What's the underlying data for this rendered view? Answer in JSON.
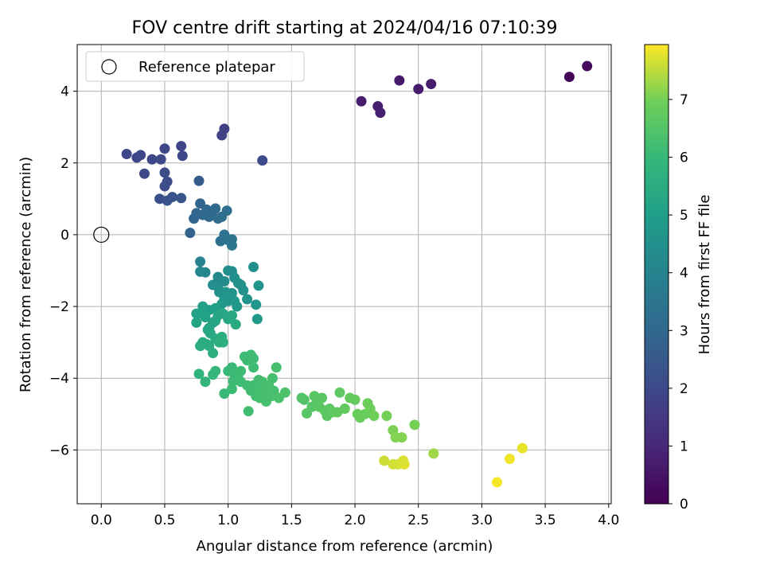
{
  "chart_data": {
    "type": "scatter",
    "title": "FOV centre drift starting at 2024/04/16 07:10:39",
    "xlabel": "Angular distance from reference (arcmin)",
    "ylabel": "Rotation from reference (arcmin)",
    "xlim": [
      -0.19,
      4.02
    ],
    "ylim": [
      -7.5,
      5.3
    ],
    "xticks": [
      0.0,
      0.5,
      1.0,
      1.5,
      2.0,
      2.5,
      3.0,
      3.5,
      4.0
    ],
    "xtick_labels": [
      "0.0",
      "0.5",
      "1.0",
      "1.5",
      "2.0",
      "2.5",
      "3.0",
      "3.5",
      "4.0"
    ],
    "yticks": [
      4,
      2,
      0,
      -2,
      -4,
      -6
    ],
    "ytick_labels": [
      "4",
      "2",
      "0",
      "−2",
      "−4",
      "−6"
    ],
    "grid": true,
    "legend": {
      "label": "Reference platepar",
      "location": "upper-left"
    },
    "reference_point": {
      "x": 0.0,
      "y": 0.0
    },
    "colorbar": {
      "label": "Hours from first FF file",
      "range": [
        0,
        7.95
      ],
      "ticks": [
        0,
        1,
        2,
        3,
        4,
        5,
        6,
        7
      ],
      "tick_labels": [
        "0",
        "1",
        "2",
        "3",
        "4",
        "5",
        "6",
        "7"
      ],
      "colormap": "viridis"
    },
    "series": [
      {
        "points": [
          [
            3.69,
            4.4,
            0.1
          ],
          [
            3.83,
            4.7,
            0.2
          ],
          [
            2.05,
            3.72,
            0.7
          ],
          [
            2.18,
            3.58,
            0.75
          ],
          [
            2.2,
            3.4,
            0.8
          ],
          [
            2.35,
            4.3,
            0.6
          ],
          [
            2.5,
            4.06,
            0.65
          ],
          [
            2.6,
            4.2,
            0.7
          ],
          [
            0.2,
            2.25,
            1.9
          ],
          [
            0.28,
            2.15,
            1.9
          ],
          [
            0.31,
            2.22,
            1.95
          ],
          [
            0.34,
            1.7,
            2.0
          ],
          [
            0.4,
            2.1,
            1.95
          ],
          [
            0.47,
            2.1,
            2.0
          ],
          [
            0.5,
            2.4,
            1.95
          ],
          [
            0.5,
            1.73,
            2.05
          ],
          [
            0.52,
            1.48,
            2.1
          ],
          [
            0.5,
            1.35,
            2.1
          ],
          [
            0.46,
            1.0,
            2.2
          ],
          [
            0.52,
            0.95,
            2.3
          ],
          [
            0.56,
            1.05,
            2.3
          ],
          [
            0.63,
            1.02,
            2.35
          ],
          [
            0.63,
            2.47,
            1.9
          ],
          [
            0.64,
            2.2,
            1.95
          ],
          [
            0.95,
            2.77,
            1.8
          ],
          [
            0.97,
            2.95,
            1.75
          ],
          [
            1.27,
            2.07,
            2.0
          ],
          [
            0.7,
            0.05,
            2.8
          ],
          [
            0.77,
            1.5,
            2.6
          ],
          [
            0.73,
            0.45,
            2.9
          ],
          [
            0.75,
            0.6,
            2.95
          ],
          [
            0.78,
            0.87,
            2.9
          ],
          [
            0.8,
            0.55,
            3.0
          ],
          [
            0.83,
            0.7,
            3.0
          ],
          [
            0.85,
            0.5,
            3.05
          ],
          [
            0.87,
            0.6,
            3.05
          ],
          [
            0.9,
            0.73,
            3.1
          ],
          [
            0.92,
            0.45,
            3.15
          ],
          [
            0.95,
            0.5,
            3.2
          ],
          [
            0.99,
            0.67,
            3.25
          ],
          [
            0.94,
            -0.18,
            3.3
          ],
          [
            0.97,
            0.0,
            3.35
          ],
          [
            1.0,
            -0.15,
            3.4
          ],
          [
            1.03,
            -0.13,
            3.45
          ],
          [
            1.03,
            -0.3,
            3.5
          ],
          [
            0.78,
            -0.75,
            4.0
          ],
          [
            0.78,
            -1.03,
            4.1
          ],
          [
            0.82,
            -1.05,
            4.1
          ],
          [
            0.92,
            -1.18,
            4.2
          ],
          [
            0.97,
            -1.3,
            4.3
          ],
          [
            1.0,
            -1.0,
            4.35
          ],
          [
            1.03,
            -1.02,
            4.4
          ],
          [
            1.05,
            -1.2,
            4.45
          ],
          [
            1.08,
            -1.35,
            4.5
          ],
          [
            1.1,
            -1.4,
            4.5
          ],
          [
            1.12,
            -1.55,
            4.55
          ],
          [
            1.15,
            -1.8,
            4.6
          ],
          [
            1.2,
            -0.9,
            4.5
          ],
          [
            1.22,
            -1.95,
            4.7
          ],
          [
            1.24,
            -1.42,
            4.6
          ],
          [
            1.23,
            -2.35,
            4.8
          ],
          [
            0.98,
            -1.6,
            4.6
          ],
          [
            1.0,
            -1.85,
            4.7
          ],
          [
            0.97,
            -1.75,
            4.7
          ],
          [
            1.03,
            -1.63,
            4.65
          ],
          [
            1.05,
            -1.85,
            4.75
          ],
          [
            1.07,
            -2.0,
            4.8
          ],
          [
            0.92,
            -1.45,
            4.5
          ],
          [
            0.88,
            -1.4,
            4.4
          ],
          [
            0.93,
            -1.6,
            4.5
          ],
          [
            0.95,
            -1.93,
            4.8
          ],
          [
            0.9,
            -2.05,
            5.0
          ],
          [
            0.85,
            -2.1,
            5.0
          ],
          [
            0.79,
            -2.2,
            5.1
          ],
          [
            0.75,
            -2.45,
            5.2
          ],
          [
            0.82,
            -2.3,
            5.15
          ],
          [
            0.85,
            -2.6,
            5.2
          ],
          [
            0.88,
            -2.45,
            5.2
          ],
          [
            0.9,
            -2.4,
            5.25
          ],
          [
            0.92,
            -2.25,
            5.3
          ],
          [
            0.96,
            -2.2,
            5.3
          ],
          [
            1.0,
            -2.35,
            5.35
          ],
          [
            1.03,
            -2.25,
            5.35
          ],
          [
            1.06,
            -2.5,
            5.4
          ],
          [
            0.8,
            -2.0,
            5.1
          ],
          [
            0.84,
            -2.65,
            5.3
          ],
          [
            0.86,
            -2.75,
            5.35
          ],
          [
            0.9,
            -2.9,
            5.5
          ],
          [
            0.8,
            -3.0,
            5.5
          ],
          [
            0.78,
            -3.1,
            5.55
          ],
          [
            0.85,
            -3.1,
            5.55
          ],
          [
            0.88,
            -3.3,
            5.6
          ],
          [
            0.93,
            -3.0,
            5.6
          ],
          [
            0.95,
            -2.85,
            5.6
          ],
          [
            0.75,
            -2.2,
            5.1
          ],
          [
            0.83,
            -3.05,
            5.55
          ],
          [
            0.96,
            -3.0,
            5.65
          ],
          [
            0.77,
            -3.88,
            5.8
          ],
          [
            0.82,
            -4.1,
            5.85
          ],
          [
            0.9,
            -3.8,
            5.9
          ],
          [
            0.88,
            -3.9,
            5.9
          ],
          [
            0.97,
            -4.43,
            6.0
          ],
          [
            1.0,
            -3.8,
            6.0
          ],
          [
            1.03,
            -3.7,
            6.0
          ],
          [
            1.05,
            -3.9,
            6.05
          ],
          [
            1.08,
            -4.0,
            6.05
          ],
          [
            1.1,
            -3.8,
            6.1
          ],
          [
            1.13,
            -3.4,
            6.1
          ],
          [
            1.15,
            -3.5,
            6.1
          ],
          [
            1.18,
            -3.35,
            6.1
          ],
          [
            1.2,
            -3.45,
            6.15
          ],
          [
            1.2,
            -3.7,
            6.15
          ],
          [
            1.04,
            -4.08,
            6.1
          ],
          [
            1.03,
            -4.3,
            6.1
          ],
          [
            1.07,
            -3.95,
            6.1
          ],
          [
            1.1,
            -4.1,
            6.15
          ],
          [
            1.15,
            -4.2,
            6.15
          ],
          [
            1.16,
            -4.92,
            6.2
          ],
          [
            1.18,
            -4.35,
            6.2
          ],
          [
            1.2,
            -4.2,
            6.2
          ],
          [
            1.22,
            -4.5,
            6.2
          ],
          [
            1.24,
            -4.05,
            6.2
          ],
          [
            1.25,
            -4.3,
            6.25
          ],
          [
            1.27,
            -4.1,
            6.25
          ],
          [
            1.28,
            -4.4,
            6.25
          ],
          [
            1.3,
            -4.65,
            6.3
          ],
          [
            1.32,
            -4.2,
            6.3
          ],
          [
            1.34,
            -4.5,
            6.3
          ],
          [
            1.36,
            -4.35,
            6.3
          ],
          [
            1.38,
            -3.7,
            6.3
          ],
          [
            1.35,
            -4.0,
            6.3
          ],
          [
            1.4,
            -4.55,
            6.35
          ],
          [
            1.3,
            -4.3,
            6.3
          ],
          [
            1.33,
            -4.45,
            6.3
          ],
          [
            1.25,
            -4.55,
            6.25
          ],
          [
            1.45,
            -4.4,
            6.4
          ],
          [
            1.58,
            -4.55,
            6.5
          ],
          [
            1.6,
            -4.6,
            6.5
          ],
          [
            1.62,
            -4.98,
            6.55
          ],
          [
            1.66,
            -4.8,
            6.55
          ],
          [
            1.68,
            -4.5,
            6.6
          ],
          [
            1.7,
            -4.65,
            6.6
          ],
          [
            1.72,
            -4.8,
            6.6
          ],
          [
            1.74,
            -4.55,
            6.6
          ],
          [
            1.76,
            -4.9,
            6.65
          ],
          [
            1.78,
            -5.05,
            6.65
          ],
          [
            1.8,
            -4.85,
            6.65
          ],
          [
            1.82,
            -4.95,
            6.7
          ],
          [
            1.86,
            -4.95,
            6.7
          ],
          [
            1.88,
            -4.4,
            6.7
          ],
          [
            1.92,
            -4.85,
            6.75
          ],
          [
            1.96,
            -4.55,
            6.8
          ],
          [
            2.0,
            -4.6,
            6.8
          ],
          [
            2.02,
            -5.0,
            6.85
          ],
          [
            2.04,
            -5.1,
            6.85
          ],
          [
            2.08,
            -5.0,
            6.85
          ],
          [
            2.1,
            -4.7,
            6.9
          ],
          [
            2.12,
            -4.85,
            6.9
          ],
          [
            2.15,
            -5.05,
            6.95
          ],
          [
            2.25,
            -5.05,
            7.0
          ],
          [
            2.3,
            -5.45,
            7.05
          ],
          [
            2.37,
            -5.65,
            7.1
          ],
          [
            2.32,
            -5.65,
            7.1
          ],
          [
            2.47,
            -5.3,
            7.0
          ],
          [
            2.62,
            -6.1,
            7.3
          ],
          [
            2.23,
            -6.3,
            7.6
          ],
          [
            2.3,
            -6.4,
            7.65
          ],
          [
            2.34,
            -6.4,
            7.65
          ],
          [
            2.37,
            -6.35,
            7.7
          ],
          [
            2.39,
            -6.4,
            7.75
          ],
          [
            2.38,
            -6.3,
            7.7
          ],
          [
            3.12,
            -6.9,
            7.9
          ],
          [
            3.22,
            -6.25,
            7.85
          ],
          [
            3.32,
            -5.95,
            7.8
          ]
        ]
      }
    ]
  }
}
